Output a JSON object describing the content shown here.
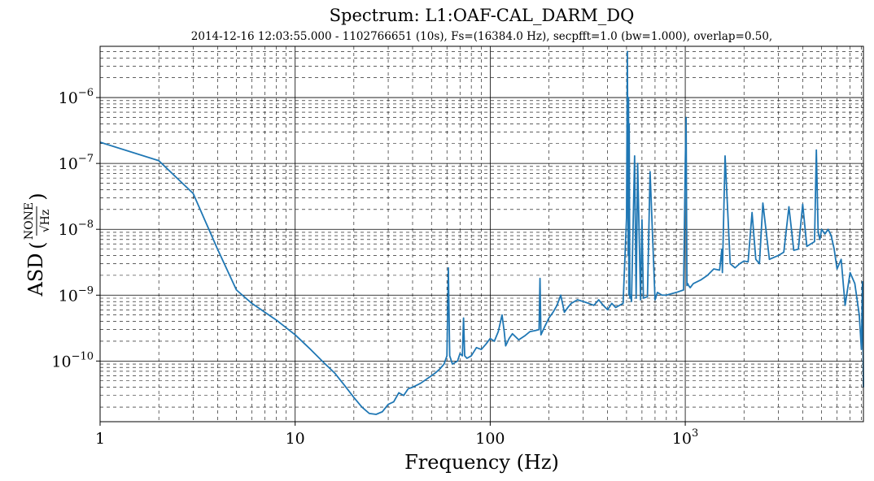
{
  "chart_data": {
    "type": "line",
    "title": "Spectrum: L1:OAF-CAL_DARM_DQ",
    "subtitle": "2014-12-16  12:03:55.000 - 1102766651  (10s),  Fs=(16384.0  Hz),  secpfft=1.0  (bw=1.000),  overlap=0.50,",
    "xlabel": "Frequency (Hz)",
    "ylabel_prefix": "ASD",
    "ylabel_unit_num": "NONE",
    "ylabel_unit_den": "√Hz",
    "xscale": "log",
    "yscale": "log",
    "xlim": [
      1,
      8192
    ],
    "ylim": [
      1.2e-11,
      6e-06
    ],
    "grid": true,
    "grid_minor": true,
    "line_color": "#1f77b4",
    "x_ticks": [
      {
        "value": 1,
        "base": "1",
        "exp": ""
      },
      {
        "value": 10,
        "base": "10",
        "exp": ""
      },
      {
        "value": 100,
        "base": "100",
        "exp": ""
      },
      {
        "value": 1000,
        "base": "10",
        "exp": "3"
      }
    ],
    "y_ticks": [
      {
        "value": 1e-10,
        "base": "10",
        "exp": "−10"
      },
      {
        "value": 1e-09,
        "base": "10",
        "exp": "−9"
      },
      {
        "value": 1e-08,
        "base": "10",
        "exp": "−8"
      },
      {
        "value": 1e-07,
        "base": "10",
        "exp": "−7"
      },
      {
        "value": 1e-06,
        "base": "10",
        "exp": "−6"
      }
    ],
    "series": [
      {
        "x": [
          1,
          2,
          3,
          4,
          5,
          6,
          7,
          8,
          10,
          12,
          14,
          16,
          18,
          20,
          22,
          24,
          26,
          28,
          30,
          32,
          34,
          36,
          38,
          40,
          44,
          48,
          52,
          55,
          58,
          60,
          61,
          62,
          64,
          68,
          70,
          72,
          73,
          74,
          76,
          80,
          85,
          90,
          95,
          100,
          105,
          110,
          115,
          118,
          120,
          125,
          130,
          140,
          150,
          160,
          170,
          178,
          180,
          182,
          190,
          200,
          210,
          220,
          230,
          240,
          250,
          260,
          280,
          300,
          320,
          340,
          360,
          380,
          400,
          420,
          440,
          460,
          480,
          500,
          505,
          510,
          512,
          514,
          516,
          520,
          525,
          530,
          550,
          560,
          570,
          590,
          600,
          610,
          640,
          660,
          700,
          720,
          760,
          800,
          900,
          980,
          1000,
          1010,
          1020,
          1030,
          1040,
          1060,
          1100,
          1200,
          1300,
          1400,
          1500,
          1540,
          1550,
          1600,
          1700,
          1800,
          1900,
          2000,
          2100,
          2200,
          2300,
          2400,
          2500,
          2700,
          3000,
          3200,
          3400,
          3600,
          3800,
          4000,
          4200,
          4400,
          4600,
          4700,
          4800,
          4900,
          5000,
          5200,
          5400,
          5600,
          5800,
          6000,
          6300,
          6600,
          7000,
          7400,
          7800,
          8000,
          8100,
          8192
        ],
        "y": [
          2.1e-07,
          1.1e-07,
          3.5e-08,
          5e-09,
          1.2e-09,
          7.5e-10,
          5.5e-10,
          4.2e-10,
          2.5e-10,
          1.5e-10,
          9.5e-11,
          6.5e-11,
          4.2e-11,
          2.8e-11,
          2e-11,
          1.6e-11,
          1.55e-11,
          1.7e-11,
          2.2e-11,
          2.4e-11,
          3.3e-11,
          3e-11,
          3.8e-11,
          4e-11,
          4.6e-11,
          5.5e-11,
          6.5e-11,
          7.5e-11,
          9e-11,
          1.2e-10,
          2.6e-09,
          1.2e-10,
          9e-11,
          1e-10,
          1.3e-10,
          1.2e-10,
          4.5e-10,
          1.2e-10,
          1.1e-10,
          1.2e-10,
          1.6e-10,
          1.5e-10,
          1.8e-10,
          2.2e-10,
          2e-10,
          2.8e-10,
          5e-10,
          2.8e-10,
          1.7e-10,
          2.2e-10,
          2.6e-10,
          2.1e-10,
          2.4e-10,
          2.8e-10,
          2.9e-10,
          3e-10,
          1.8e-09,
          2.5e-10,
          3.3e-10,
          4.5e-10,
          5.5e-10,
          7e-10,
          1e-09,
          5.5e-10,
          6.5e-10,
          7.5e-10,
          8.5e-10,
          8e-10,
          7.5e-10,
          7e-10,
          8.5e-10,
          7e-10,
          6e-10,
          7.5e-10,
          6.5e-10,
          7e-10,
          7.5e-10,
          1.5e-08,
          5e-06,
          4e-09,
          1e-06,
          1e-09,
          4e-07,
          9e-10,
          1e-09,
          8e-10,
          1.3e-07,
          9e-10,
          1e-07,
          8.5e-10,
          1.4e-08,
          9e-10,
          9.5e-10,
          7.5e-08,
          8.5e-10,
          1.1e-09,
          1e-09,
          1e-09,
          1.1e-09,
          1.2e-09,
          1e-07,
          5e-07,
          1.4e-09,
          1.5e-09,
          1.4e-09,
          1.3e-09,
          1.5e-09,
          1.7e-09,
          2e-09,
          2.5e-09,
          2.4e-09,
          5e-09,
          2.2e-09,
          1.3e-07,
          3e-09,
          2.6e-09,
          3e-09,
          3.3e-09,
          3.2e-09,
          1.8e-08,
          3.5e-09,
          3e-09,
          2.5e-08,
          3.5e-09,
          4e-09,
          4.5e-09,
          2.2e-08,
          4.8e-09,
          5e-09,
          2.4e-08,
          5.5e-09,
          6e-09,
          6.5e-09,
          1.6e-07,
          9e-09,
          7e-09,
          1e-08,
          8.5e-09,
          1e-08,
          8e-09,
          5e-09,
          2.5e-09,
          3.5e-09,
          7e-10,
          2.2e-09,
          1.5e-09,
          5e-10,
          1.5e-10,
          1.6e-09,
          4e-11
        ]
      }
    ]
  }
}
